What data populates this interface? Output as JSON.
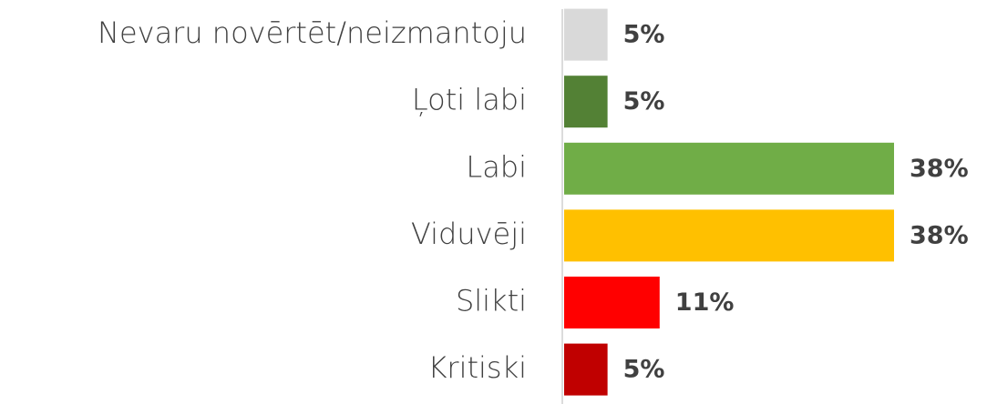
{
  "chart_data": {
    "type": "barh",
    "categories": [
      "Nevaru novērtēt/neizmantoju",
      "Ļoti labi",
      "Labi",
      "Viduvēji",
      "Slikti",
      "Kritiski"
    ],
    "values": [
      5,
      5,
      38,
      38,
      11,
      5
    ],
    "value_labels": [
      "5%",
      "5%",
      "38%",
      "38%",
      "11%",
      "5%"
    ],
    "colors": [
      "#d9d9d9",
      "#538135",
      "#70ad47",
      "#ffc000",
      "#ff0000",
      "#c00000"
    ]
  }
}
